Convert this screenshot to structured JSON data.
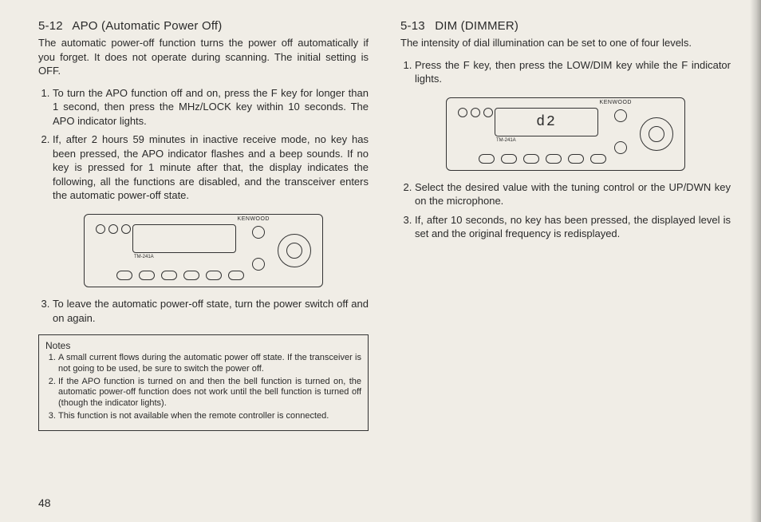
{
  "page_number": "48",
  "left": {
    "section_number": "5-12",
    "section_title": "APO (Automatic Power Off)",
    "intro": "The automatic power-off function turns the power off automatically if you forget. It does not operate during scanning. The initial setting is OFF.",
    "steps": [
      "To turn the APO function off and on, press the F key for longer than 1 second, then press the MHz/LOCK key within 10 seconds. The APO indicator lights.",
      "If, after 2 hours 59 minutes in inactive receive mode, no key has been pressed, the APO indicator flashes and a beep sounds. If no key is pressed for 1 minute after that, the display indicates the following, all the functions are disabled, and the transceiver enters the automatic power-off state."
    ],
    "step3": "To leave the automatic power-off state, turn the power switch off and on again.",
    "radio": {
      "brand": "KENWOOD",
      "model": "TM-241A",
      "display": ""
    },
    "notes_title": "Notes",
    "notes": [
      "A small current flows during the automatic power off state. If the transceiver is not going to be used, be sure to switch the power off.",
      "If the APO function is turned on and then the bell function is turned on, the automatic power-off function does not work until the bell function is turned off (though the indicator lights).",
      "This function is not available when the remote controller is connected."
    ]
  },
  "right": {
    "section_number": "5-13",
    "section_title": "DIM (DIMMER)",
    "intro": "The intensity of dial illumination can be set to one of four levels.",
    "step1": "Press the F key, then press the LOW/DIM key while the F indicator lights.",
    "radio": {
      "brand": "KENWOOD",
      "model": "TM-241A",
      "display": "d2"
    },
    "steps_after": [
      "Select the desired value with the tuning control or the UP/DWN key on the microphone.",
      "If, after 10 seconds, no key has been pressed, the displayed level is set and the original frequency is redisplayed."
    ]
  }
}
